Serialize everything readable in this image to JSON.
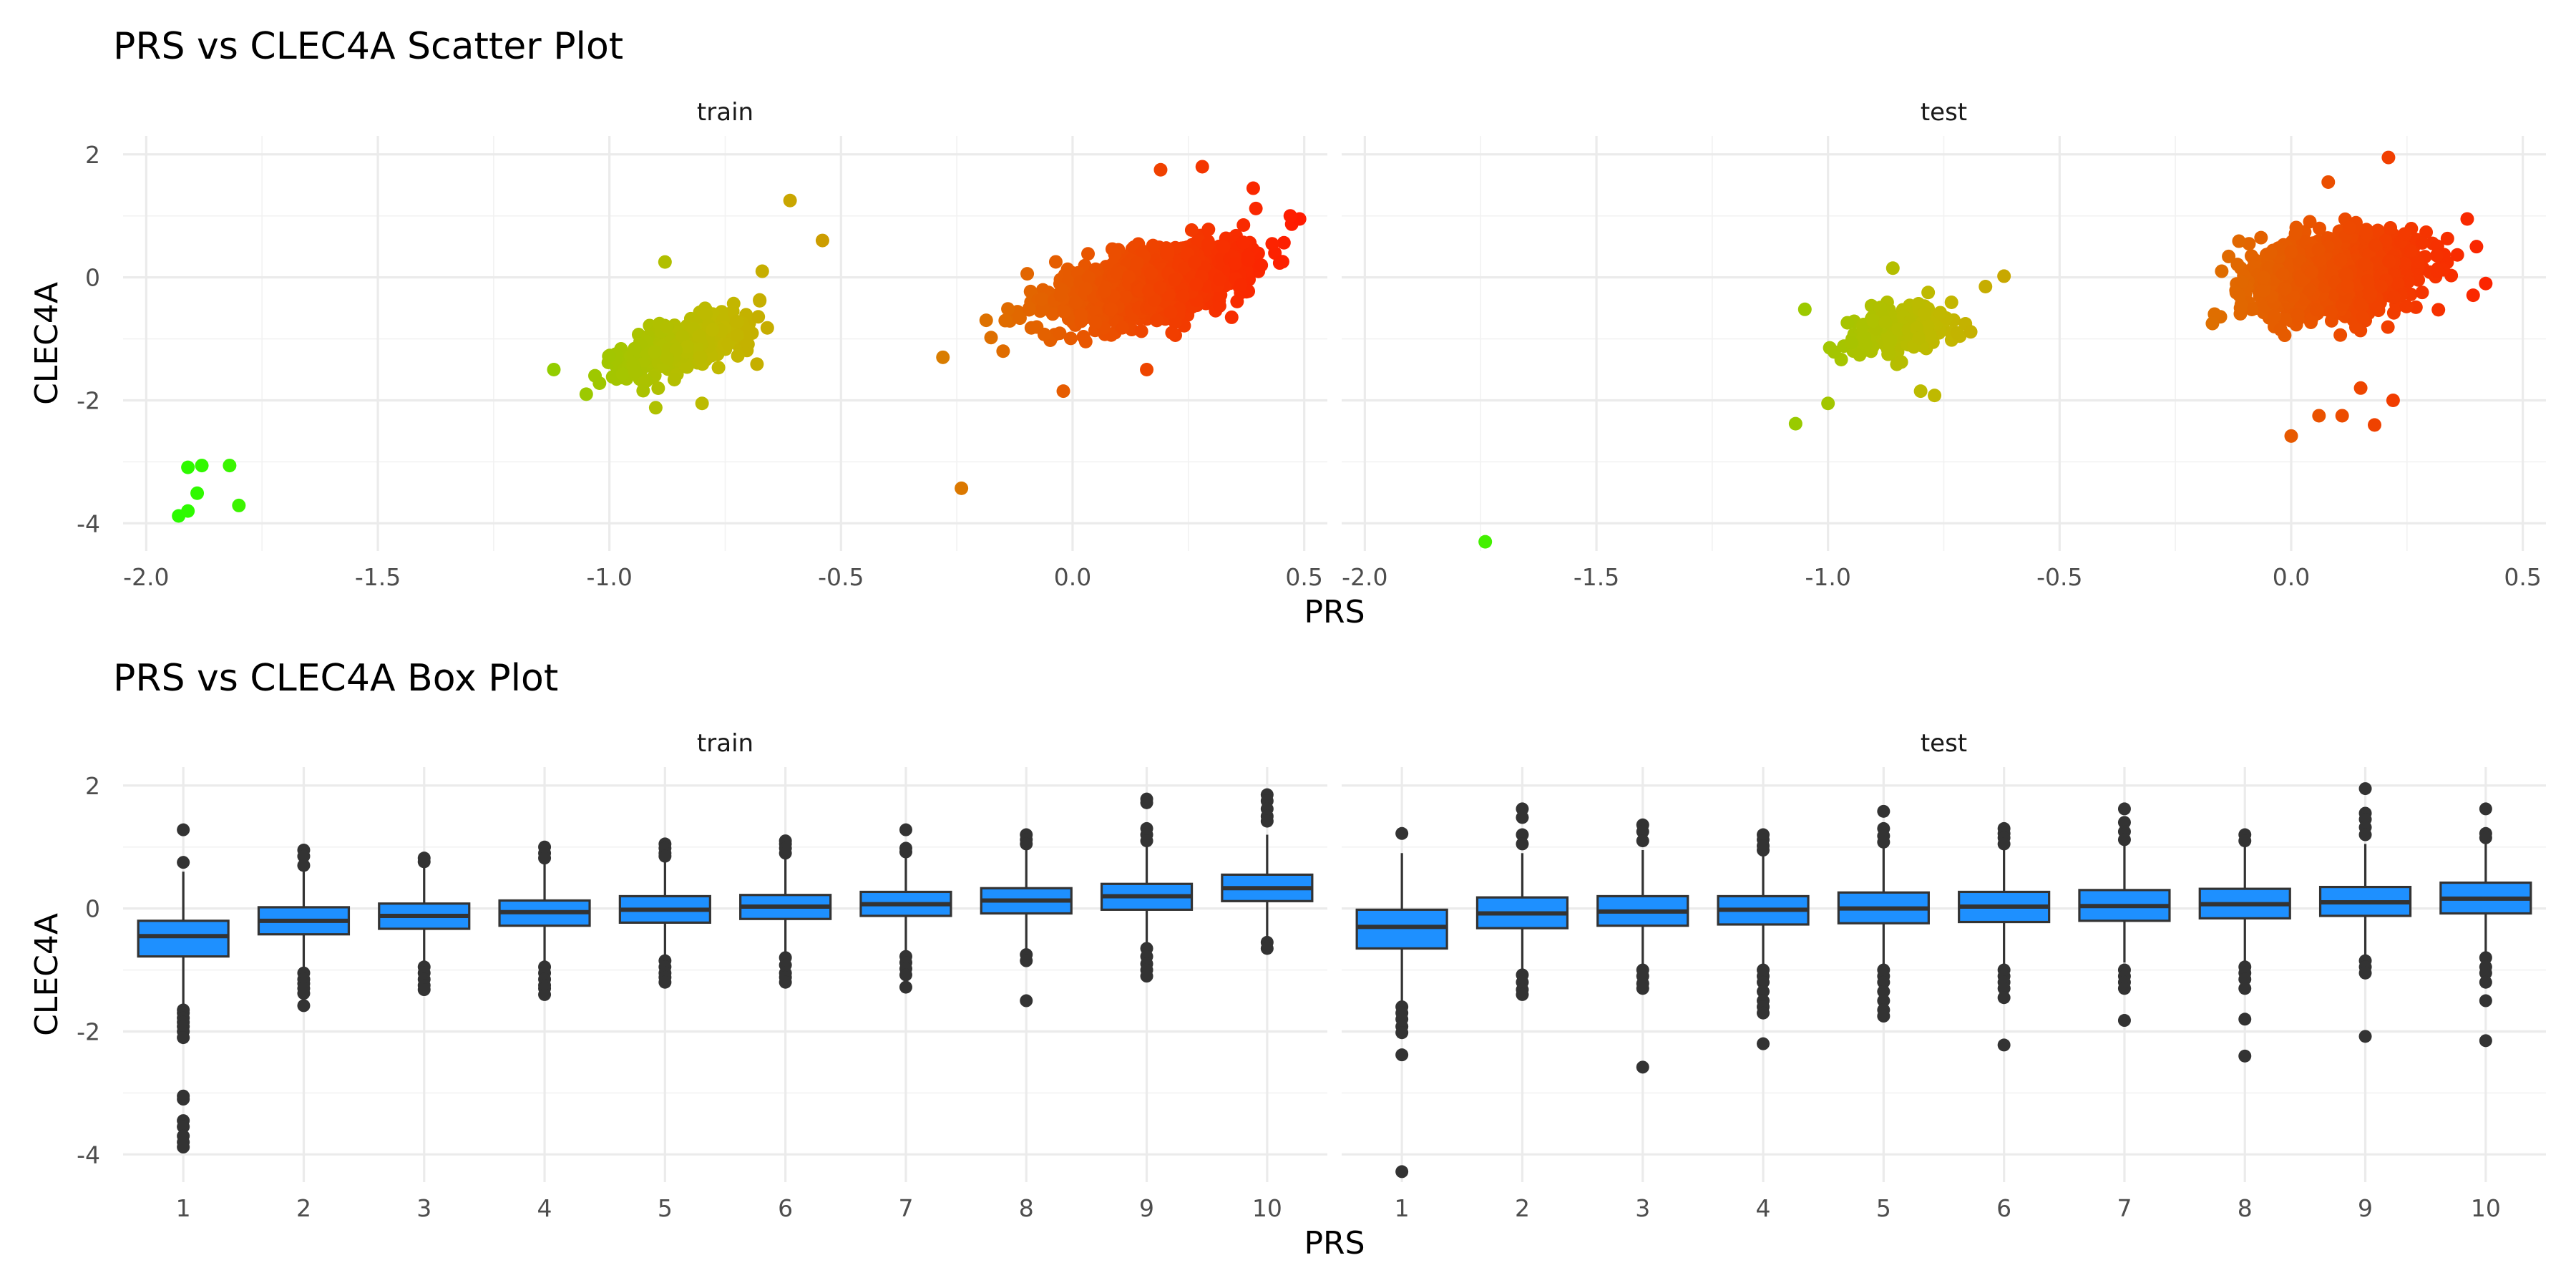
{
  "figure": {
    "scatter_title": "PRS vs CLEC4A Scatter Plot",
    "box_title": "PRS vs CLEC4A Box Plot"
  },
  "chart_data": [
    {
      "type": "scatter",
      "title": "PRS vs CLEC4A Scatter Plot",
      "xlabel": "PRS",
      "ylabel": "CLEC4A",
      "xlim": [
        -2.05,
        0.55
      ],
      "ylim": [
        -4.45,
        2.3
      ],
      "x_ticks": [
        -2.0,
        -1.5,
        -1.0,
        -0.5,
        0.0,
        0.5
      ],
      "x_tick_labels": [
        "-2.0",
        "-1.5",
        "-1.0",
        "-0.5",
        "0.0",
        "0.5"
      ],
      "y_ticks": [
        -4,
        -2,
        0,
        2
      ],
      "y_tick_labels": [
        "-4",
        "-2",
        "0",
        "2"
      ],
      "grid": true,
      "legend": "none",
      "color_scale": {
        "low": "#22ff00",
        "mid": "#c2b800",
        "high": "#ff1a00",
        "low_x": -2.0,
        "high_x": 0.5
      },
      "facets": [
        {
          "name": "train",
          "clusters": [
            {
              "x_mean": 0.16,
              "y_mean": -0.12,
              "x_sd": 0.1,
              "y_sd": 0.34,
              "slope": 1.6,
              "count": 1400
            },
            {
              "x_mean": -0.84,
              "y_mean": -1.1,
              "x_sd": 0.068,
              "y_sd": 0.28,
              "slope": 2.0,
              "count": 380
            }
          ],
          "points": [
            {
              "x": -1.93,
              "y": -3.88
            },
            {
              "x": -1.91,
              "y": -3.8
            },
            {
              "x": -1.91,
              "y": -3.09
            },
            {
              "x": -1.88,
              "y": -3.06
            },
            {
              "x": -1.89,
              "y": -3.51
            },
            {
              "x": -1.82,
              "y": -3.06
            },
            {
              "x": -1.8,
              "y": -3.71
            },
            {
              "x": -1.12,
              "y": -1.5
            },
            {
              "x": -0.61,
              "y": 1.25
            },
            {
              "x": -0.54,
              "y": 0.6
            },
            {
              "x": -0.28,
              "y": -1.3
            },
            {
              "x": -0.24,
              "y": -3.43
            },
            {
              "x": 0.49,
              "y": 0.95
            },
            {
              "x": 0.47,
              "y": 1.0
            },
            {
              "x": 0.28,
              "y": 1.8
            },
            {
              "x": 0.19,
              "y": 1.75
            },
            {
              "x": 0.39,
              "y": 1.45
            },
            {
              "x": 0.16,
              "y": -1.5
            },
            {
              "x": -0.15,
              "y": -1.2
            },
            {
              "x": -0.02,
              "y": -1.85
            },
            {
              "x": -0.88,
              "y": 0.25
            },
            {
              "x": -0.8,
              "y": -2.05
            },
            {
              "x": -0.9,
              "y": -2.12
            },
            {
              "x": -1.05,
              "y": -1.9
            },
            {
              "x": -0.67,
              "y": 0.1
            }
          ]
        },
        {
          "name": "test",
          "clusters": [
            {
              "x_mean": 0.1,
              "y_mean": 0.02,
              "x_sd": 0.085,
              "y_sd": 0.42,
              "slope": 0.6,
              "count": 1200
            },
            {
              "x_mean": -0.85,
              "y_mean": -0.85,
              "x_sd": 0.058,
              "y_sd": 0.27,
              "slope": 1.6,
              "count": 200
            }
          ],
          "points": [
            {
              "x": -1.74,
              "y": -4.3
            },
            {
              "x": -1.07,
              "y": -2.38
            },
            {
              "x": -1.0,
              "y": -2.05
            },
            {
              "x": -1.05,
              "y": -0.52
            },
            {
              "x": -0.62,
              "y": 0.02
            },
            {
              "x": -0.66,
              "y": -0.15
            },
            {
              "x": -0.86,
              "y": 0.15
            },
            {
              "x": -0.8,
              "y": -1.85
            },
            {
              "x": -0.77,
              "y": -1.92
            },
            {
              "x": 0.11,
              "y": -2.25
            },
            {
              "x": 0.06,
              "y": -2.25
            },
            {
              "x": 0.18,
              "y": -2.4
            },
            {
              "x": 0.0,
              "y": -2.58
            },
            {
              "x": 0.22,
              "y": -2.0
            },
            {
              "x": 0.15,
              "y": -1.8
            },
            {
              "x": 0.21,
              "y": 1.95
            },
            {
              "x": 0.08,
              "y": 1.55
            },
            {
              "x": 0.38,
              "y": 0.95
            },
            {
              "x": 0.4,
              "y": 0.5
            },
            {
              "x": 0.42,
              "y": -0.1
            },
            {
              "x": -0.17,
              "y": -0.75
            },
            {
              "x": -0.15,
              "y": 0.1
            }
          ]
        }
      ]
    },
    {
      "type": "box",
      "title": "PRS vs CLEC4A Box Plot",
      "xlabel": "PRS",
      "ylabel": "CLEC4A",
      "categories": [
        "1",
        "2",
        "3",
        "4",
        "5",
        "6",
        "7",
        "8",
        "9",
        "10"
      ],
      "ylim": [
        -4.45,
        2.3
      ],
      "y_ticks": [
        -4,
        -2,
        0,
        2
      ],
      "y_tick_labels": [
        "-4",
        "-2",
        "0",
        "2"
      ],
      "box_fill": "#1e90ff",
      "grid": true,
      "legend": "none",
      "facets": [
        {
          "name": "train",
          "boxes": [
            {
              "q1": -0.78,
              "median": -0.45,
              "q3": -0.2,
              "lower": -1.6,
              "upper": 0.6,
              "outliers": [
                1.28,
                0.75,
                -1.65,
                -1.7,
                -1.78,
                -1.85,
                -1.92,
                -2.0,
                -2.1,
                -3.05,
                -3.1,
                -3.45,
                -3.55,
                -3.7,
                -3.8,
                -3.88
              ]
            },
            {
              "q1": -0.42,
              "median": -0.2,
              "q3": 0.02,
              "lower": -0.95,
              "upper": 0.62,
              "outliers": [
                0.95,
                0.85,
                0.7,
                -1.05,
                -1.15,
                -1.22,
                -1.3,
                -1.38,
                -1.58
              ]
            },
            {
              "q1": -0.33,
              "median": -0.12,
              "q3": 0.08,
              "lower": -0.9,
              "upper": 0.7,
              "outliers": [
                0.82,
                0.76,
                -0.95,
                -1.05,
                -1.15,
                -1.25,
                -1.32
              ]
            },
            {
              "q1": -0.28,
              "median": -0.06,
              "q3": 0.13,
              "lower": -0.85,
              "upper": 0.72,
              "outliers": [
                1.0,
                0.9,
                0.82,
                -0.95,
                -1.05,
                -1.15,
                -1.25,
                -1.3,
                -1.4
              ]
            },
            {
              "q1": -0.23,
              "median": -0.02,
              "q3": 0.2,
              "lower": -0.78,
              "upper": 0.8,
              "outliers": [
                1.05,
                0.98,
                0.9,
                0.85,
                -0.85,
                -0.95,
                -1.05,
                -1.12,
                -1.2
              ]
            },
            {
              "q1": -0.17,
              "median": 0.03,
              "q3": 0.22,
              "lower": -0.72,
              "upper": 0.8,
              "outliers": [
                1.1,
                1.05,
                0.98,
                0.9,
                -0.8,
                -0.92,
                -1.05,
                -1.12,
                -1.2
              ]
            },
            {
              "q1": -0.12,
              "median": 0.07,
              "q3": 0.27,
              "lower": -0.68,
              "upper": 0.85,
              "outliers": [
                1.28,
                0.98,
                0.92,
                -0.78,
                -0.88,
                -0.98,
                -1.08,
                -1.28
              ]
            },
            {
              "q1": -0.08,
              "median": 0.13,
              "q3": 0.33,
              "lower": -0.68,
              "upper": 0.95,
              "outliers": [
                1.2,
                1.12,
                1.05,
                -0.75,
                -0.85,
                -1.5
              ]
            },
            {
              "q1": -0.02,
              "median": 0.2,
              "q3": 0.4,
              "lower": -0.6,
              "upper": 1.0,
              "outliers": [
                1.78,
                1.72,
                1.3,
                1.2,
                1.1,
                -0.65,
                -0.78,
                -0.9,
                -1.0,
                -1.1
              ]
            },
            {
              "q1": 0.12,
              "median": 0.33,
              "q3": 0.55,
              "lower": -0.5,
              "upper": 1.2,
              "outliers": [
                1.85,
                1.75,
                1.62,
                1.5,
                1.42,
                -0.55,
                -0.65
              ]
            }
          ]
        },
        {
          "name": "test",
          "boxes": [
            {
              "q1": -0.65,
              "median": -0.3,
              "q3": -0.02,
              "lower": -1.5,
              "upper": 0.9,
              "outliers": [
                1.22,
                -1.6,
                -1.7,
                -1.8,
                -1.92,
                -2.02,
                -2.38,
                -4.28
              ]
            },
            {
              "q1": -0.32,
              "median": -0.08,
              "q3": 0.18,
              "lower": -1.0,
              "upper": 0.9,
              "outliers": [
                1.62,
                1.48,
                1.2,
                1.05,
                -1.08,
                -1.2,
                -1.32,
                -1.4
              ]
            },
            {
              "q1": -0.28,
              "median": -0.05,
              "q3": 0.2,
              "lower": -0.95,
              "upper": 0.95,
              "outliers": [
                1.36,
                1.25,
                1.1,
                -1.0,
                -1.1,
                -1.22,
                -1.3,
                -2.58
              ]
            },
            {
              "q1": -0.26,
              "median": -0.02,
              "q3": 0.2,
              "lower": -0.9,
              "upper": 0.9,
              "outliers": [
                1.2,
                1.12,
                1.02,
                0.95,
                -1.0,
                -1.1,
                -1.2,
                -1.35,
                -1.5,
                -1.6,
                -1.7,
                -2.2
              ]
            },
            {
              "q1": -0.24,
              "median": 0.0,
              "q3": 0.26,
              "lower": -0.9,
              "upper": 1.0,
              "outliers": [
                1.58,
                1.3,
                1.18,
                1.08,
                -1.0,
                -1.1,
                -1.2,
                -1.35,
                -1.5,
                -1.65,
                -1.75
              ]
            },
            {
              "q1": -0.22,
              "median": 0.03,
              "q3": 0.27,
              "lower": -0.9,
              "upper": 0.98,
              "outliers": [
                1.3,
                1.22,
                1.15,
                1.05,
                -1.0,
                -1.1,
                -1.2,
                -1.3,
                -1.45,
                -2.22
              ]
            },
            {
              "q1": -0.2,
              "median": 0.04,
              "q3": 0.3,
              "lower": -0.88,
              "upper": 1.02,
              "outliers": [
                1.62,
                1.4,
                1.25,
                1.12,
                -1.0,
                -1.1,
                -1.2,
                -1.3,
                -1.82
              ]
            },
            {
              "q1": -0.16,
              "median": 0.07,
              "q3": 0.32,
              "lower": -0.85,
              "upper": 1.02,
              "outliers": [
                1.2,
                1.1,
                -0.95,
                -1.05,
                -1.15,
                -1.3,
                -1.8,
                -2.4
              ]
            },
            {
              "q1": -0.12,
              "median": 0.1,
              "q3": 0.35,
              "lower": -0.8,
              "upper": 1.05,
              "outliers": [
                1.95,
                1.55,
                1.45,
                1.32,
                1.2,
                -0.85,
                -0.95,
                -1.05,
                -2.08
              ]
            },
            {
              "q1": -0.08,
              "median": 0.16,
              "q3": 0.42,
              "lower": -0.75,
              "upper": 1.15,
              "outliers": [
                1.62,
                1.22,
                1.15,
                -0.8,
                -0.95,
                -1.05,
                -1.2,
                -1.5,
                -2.15
              ]
            }
          ]
        }
      ]
    }
  ]
}
